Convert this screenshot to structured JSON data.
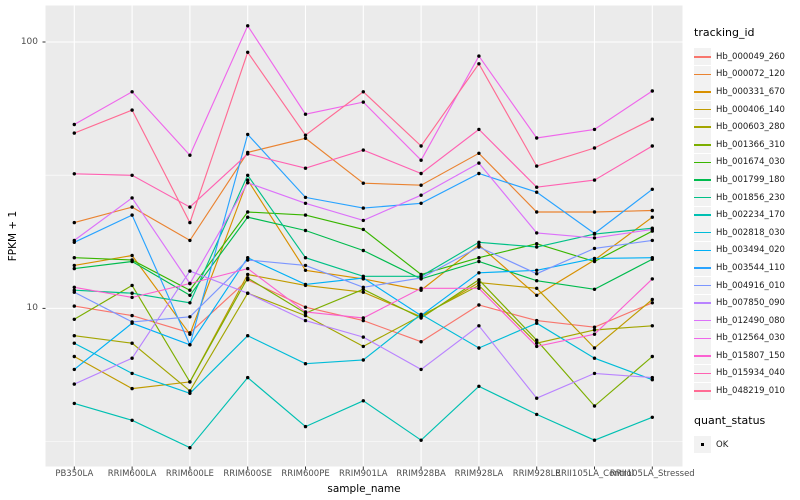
{
  "figure": {
    "y_axis_title": "FPKM + 1",
    "x_axis_title": "sample_name",
    "y_ticks": [
      {
        "label": "100",
        "value": 100
      },
      {
        "label": "10",
        "value": 10
      }
    ],
    "legend": {
      "tracking_title": "tracking_id",
      "quant_title": "quant_status",
      "quant_items": [
        {
          "label": "OK",
          "color": "#000000"
        }
      ]
    },
    "colors": {
      "panel_bg": "#EBEBEB",
      "grid": "#FFFFFF",
      "tick_mark": "#333333",
      "tick_text": "#4D4D4D",
      "point": "#000000",
      "legend_key_bg": "#F2F2F2"
    }
  },
  "chart_data": {
    "type": "line",
    "title": "",
    "xlabel": "sample_name",
    "ylabel": "FPKM + 1",
    "yscale": "log10",
    "grid": "on",
    "legend_position": "right",
    "y_major_breaks": [
      10,
      100
    ],
    "y_minor_breaks": [
      3.1623,
      31.623
    ],
    "y_domain": [
      2.53,
      136.5
    ],
    "point_color": "#000000",
    "quant_status": "OK",
    "categories": [
      "PB350LA",
      "RRIM600LA",
      "RRIM600LE",
      "RRIM600SE",
      "RRIM600PE",
      "RRIM901LA",
      "RRIM928BA",
      "RRIM928LA",
      "RRIM928LE",
      "RRII105LA_Control",
      "RRII105LA_Stressed"
    ],
    "series": [
      {
        "name": "Hb_000049_260",
        "color": "#F8766D",
        "values": [
          10.2,
          9.4,
          8.1,
          12.8,
          10.1,
          9.0,
          7.5,
          10.3,
          9.0,
          8.5,
          10.5
        ]
      },
      {
        "name": "Hb_000072_120",
        "color": "#EA8331",
        "values": [
          21.0,
          24.0,
          18.0,
          38.5,
          43.5,
          29.5,
          29.0,
          38.2,
          23.0,
          23.0,
          23.3
        ]
      },
      {
        "name": "Hb_000331_670",
        "color": "#D89000",
        "values": [
          14.5,
          15.8,
          8.0,
          30.3,
          13.9,
          12.9,
          11.7,
          17.3,
          11.2,
          15.2,
          22.0
        ]
      },
      {
        "name": "Hb_000406_140",
        "color": "#C09B00",
        "values": [
          6.6,
          5.0,
          5.3,
          13.4,
          12.2,
          11.5,
          9.3,
          12.5,
          11.9,
          7.1,
          10.8
        ]
      },
      {
        "name": "Hb_000603_280",
        "color": "#A3A500",
        "values": [
          7.9,
          7.4,
          4.9,
          11.4,
          9.4,
          7.2,
          9.4,
          12.2,
          7.4,
          8.3,
          8.6
        ]
      },
      {
        "name": "Hb_001366_310",
        "color": "#7CAE00",
        "values": [
          9.1,
          12.2,
          5.3,
          13.0,
          9.6,
          11.8,
          9.2,
          12.8,
          7.6,
          4.3,
          6.6
        ]
      },
      {
        "name": "Hb_001674_030",
        "color": "#39B600",
        "values": [
          15.5,
          15.2,
          11.7,
          23.0,
          22.4,
          19.8,
          13.4,
          15.5,
          17.5,
          15.0,
          19.5
        ]
      },
      {
        "name": "Hb_001799_180",
        "color": "#00BB4E",
        "values": [
          14.1,
          15.0,
          11.2,
          22.0,
          19.6,
          16.5,
          12.9,
          15.0,
          12.7,
          11.8,
          15.3
        ]
      },
      {
        "name": "Hb_001856_230",
        "color": "#00C087",
        "values": [
          11.7,
          11.4,
          10.5,
          31.6,
          15.5,
          13.2,
          13.2,
          17.7,
          17.0,
          19.0,
          20.0
        ]
      },
      {
        "name": "Hb_002234_170",
        "color": "#00C0B2",
        "values": [
          4.4,
          3.8,
          3.0,
          5.5,
          3.6,
          4.5,
          3.2,
          5.1,
          4.0,
          3.2,
          3.9
        ]
      },
      {
        "name": "Hb_002818_030",
        "color": "#00BCD8",
        "values": [
          7.4,
          5.7,
          4.8,
          7.9,
          6.2,
          6.4,
          9.5,
          7.1,
          8.8,
          6.5,
          5.4
        ]
      },
      {
        "name": "Hb_003494_020",
        "color": "#00B0F6",
        "values": [
          5.9,
          8.8,
          7.3,
          15.5,
          12.3,
          13.0,
          9.4,
          13.6,
          13.9,
          15.4,
          15.5
        ]
      },
      {
        "name": "Hb_003544_110",
        "color": "#29A3FF",
        "values": [
          17.7,
          22.4,
          7.3,
          45.0,
          26.1,
          23.8,
          24.8,
          32.1,
          27.3,
          19.1,
          28.0
        ]
      },
      {
        "name": "Hb_004916_010",
        "color": "#7C96FF",
        "values": [
          11.5,
          8.9,
          9.3,
          15.2,
          14.5,
          12.0,
          13.0,
          17.0,
          13.5,
          16.8,
          18.0
        ]
      },
      {
        "name": "Hb_007850_090",
        "color": "#B983FF",
        "values": [
          5.2,
          6.5,
          13.8,
          11.4,
          9.0,
          7.8,
          5.9,
          8.6,
          4.6,
          5.7,
          5.5
        ]
      },
      {
        "name": "Hb_012490_080",
        "color": "#DC71FA",
        "values": [
          18.0,
          26.0,
          12.4,
          29.6,
          24.8,
          21.4,
          26.6,
          35.1,
          19.2,
          18.4,
          19.8
        ]
      },
      {
        "name": "Hb_012564_030",
        "color": "#EF67EB",
        "values": [
          49.0,
          65.0,
          37.6,
          115.0,
          53.6,
          59.5,
          36.0,
          88.5,
          43.6,
          47.0,
          65.5
        ]
      },
      {
        "name": "Hb_015807_150",
        "color": "#FB61D1",
        "values": [
          12.0,
          11.0,
          12.4,
          14.1,
          9.7,
          9.2,
          11.9,
          11.9,
          7.2,
          8.0,
          12.9
        ]
      },
      {
        "name": "Hb_015934_040",
        "color": "#FF62B2",
        "values": [
          32.0,
          31.6,
          24.0,
          38.0,
          33.6,
          39.3,
          32.1,
          47.0,
          28.5,
          30.3,
          40.7
        ]
      },
      {
        "name": "Hb_048219_010",
        "color": "#FF6B94",
        "values": [
          45.5,
          55.5,
          21.0,
          91.5,
          44.7,
          65.0,
          40.7,
          82.8,
          34.2,
          40.0,
          51.3
        ]
      }
    ]
  }
}
